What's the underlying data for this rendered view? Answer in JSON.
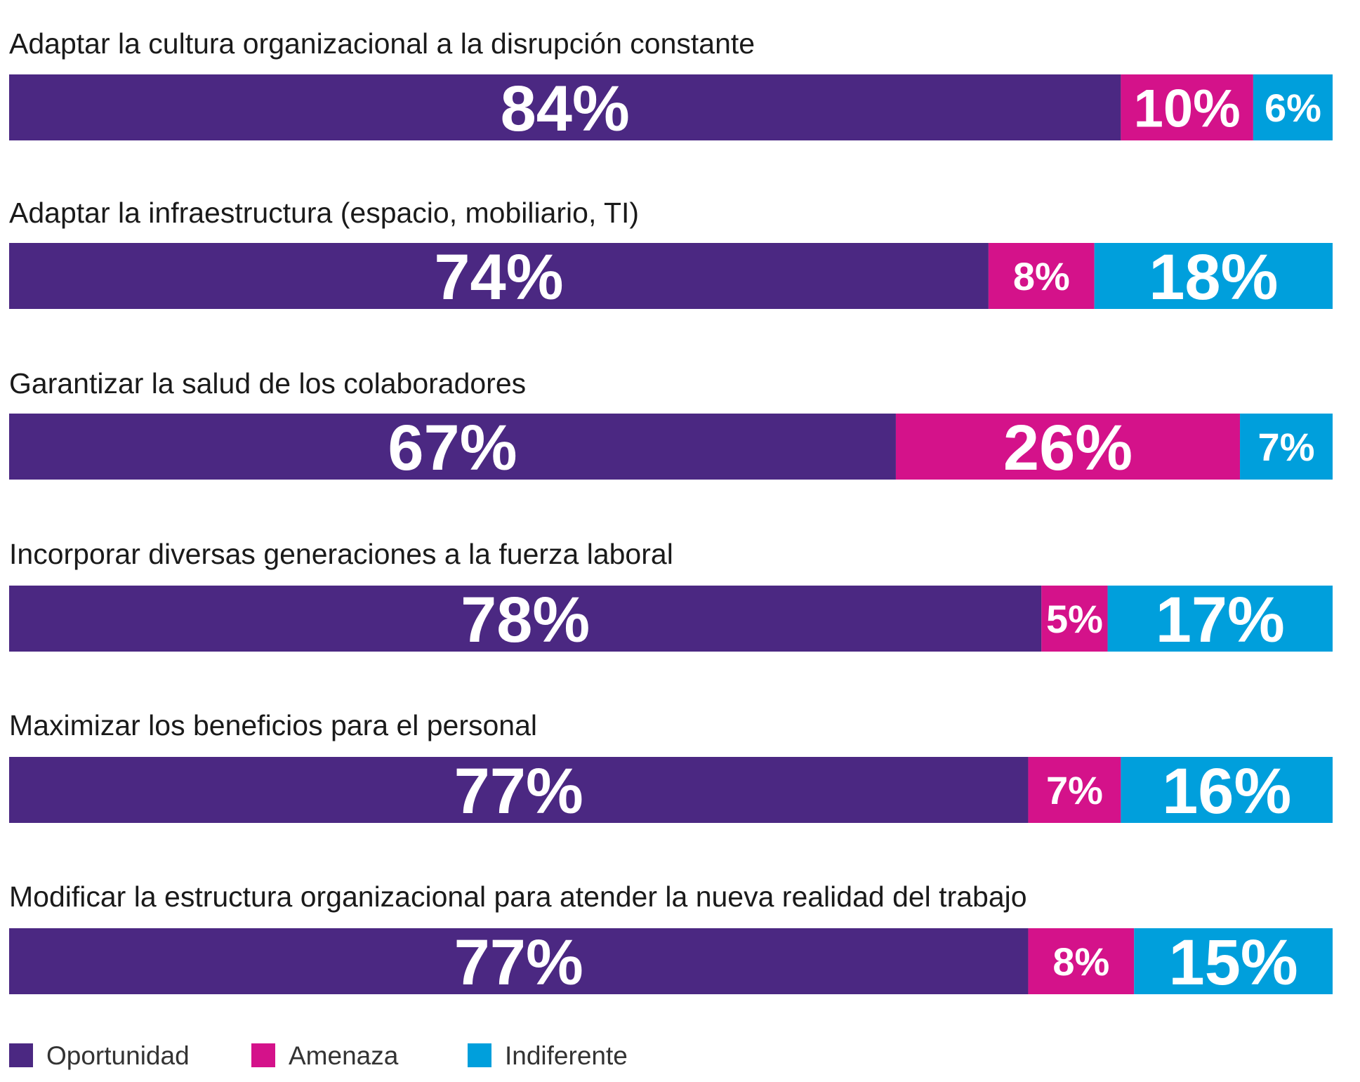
{
  "chart_data": {
    "type": "bar",
    "stacked": true,
    "orientation": "horizontal",
    "unit": "%",
    "categories": [
      "Adaptar la cultura organizacional a la disrupción constante",
      "Adaptar la infraestructura (espacio, mobiliario, TI)",
      "Garantizar la salud de los colaboradores",
      "Incorporar diversas generaciones a la fuerza laboral",
      "Maximizar los beneficios para el personal",
      "Modificar la estructura organizacional para atender la nueva realidad del trabajo"
    ],
    "series": [
      {
        "name": "Oportunidad",
        "color": "#4b2882",
        "values": [
          84,
          74,
          67,
          78,
          77,
          77
        ]
      },
      {
        "name": "Amenaza",
        "color": "#d4128a",
        "values": [
          10,
          8,
          26,
          5,
          7,
          8
        ]
      },
      {
        "name": "Indiferente",
        "color": "#009fdc",
        "values": [
          6,
          18,
          7,
          17,
          16,
          15
        ]
      }
    ],
    "data_labels": [
      [
        "84%",
        "10%",
        "6%"
      ],
      [
        "74%",
        "8%",
        "18%"
      ],
      [
        "67%",
        "26%",
        "7%"
      ],
      [
        "78%",
        "5%",
        "17%"
      ],
      [
        "77%",
        "7%",
        "16%"
      ],
      [
        "77%",
        "8%",
        "15%"
      ]
    ],
    "xlim": [
      0,
      100
    ],
    "grid": false,
    "legend_position": "bottom-left"
  }
}
